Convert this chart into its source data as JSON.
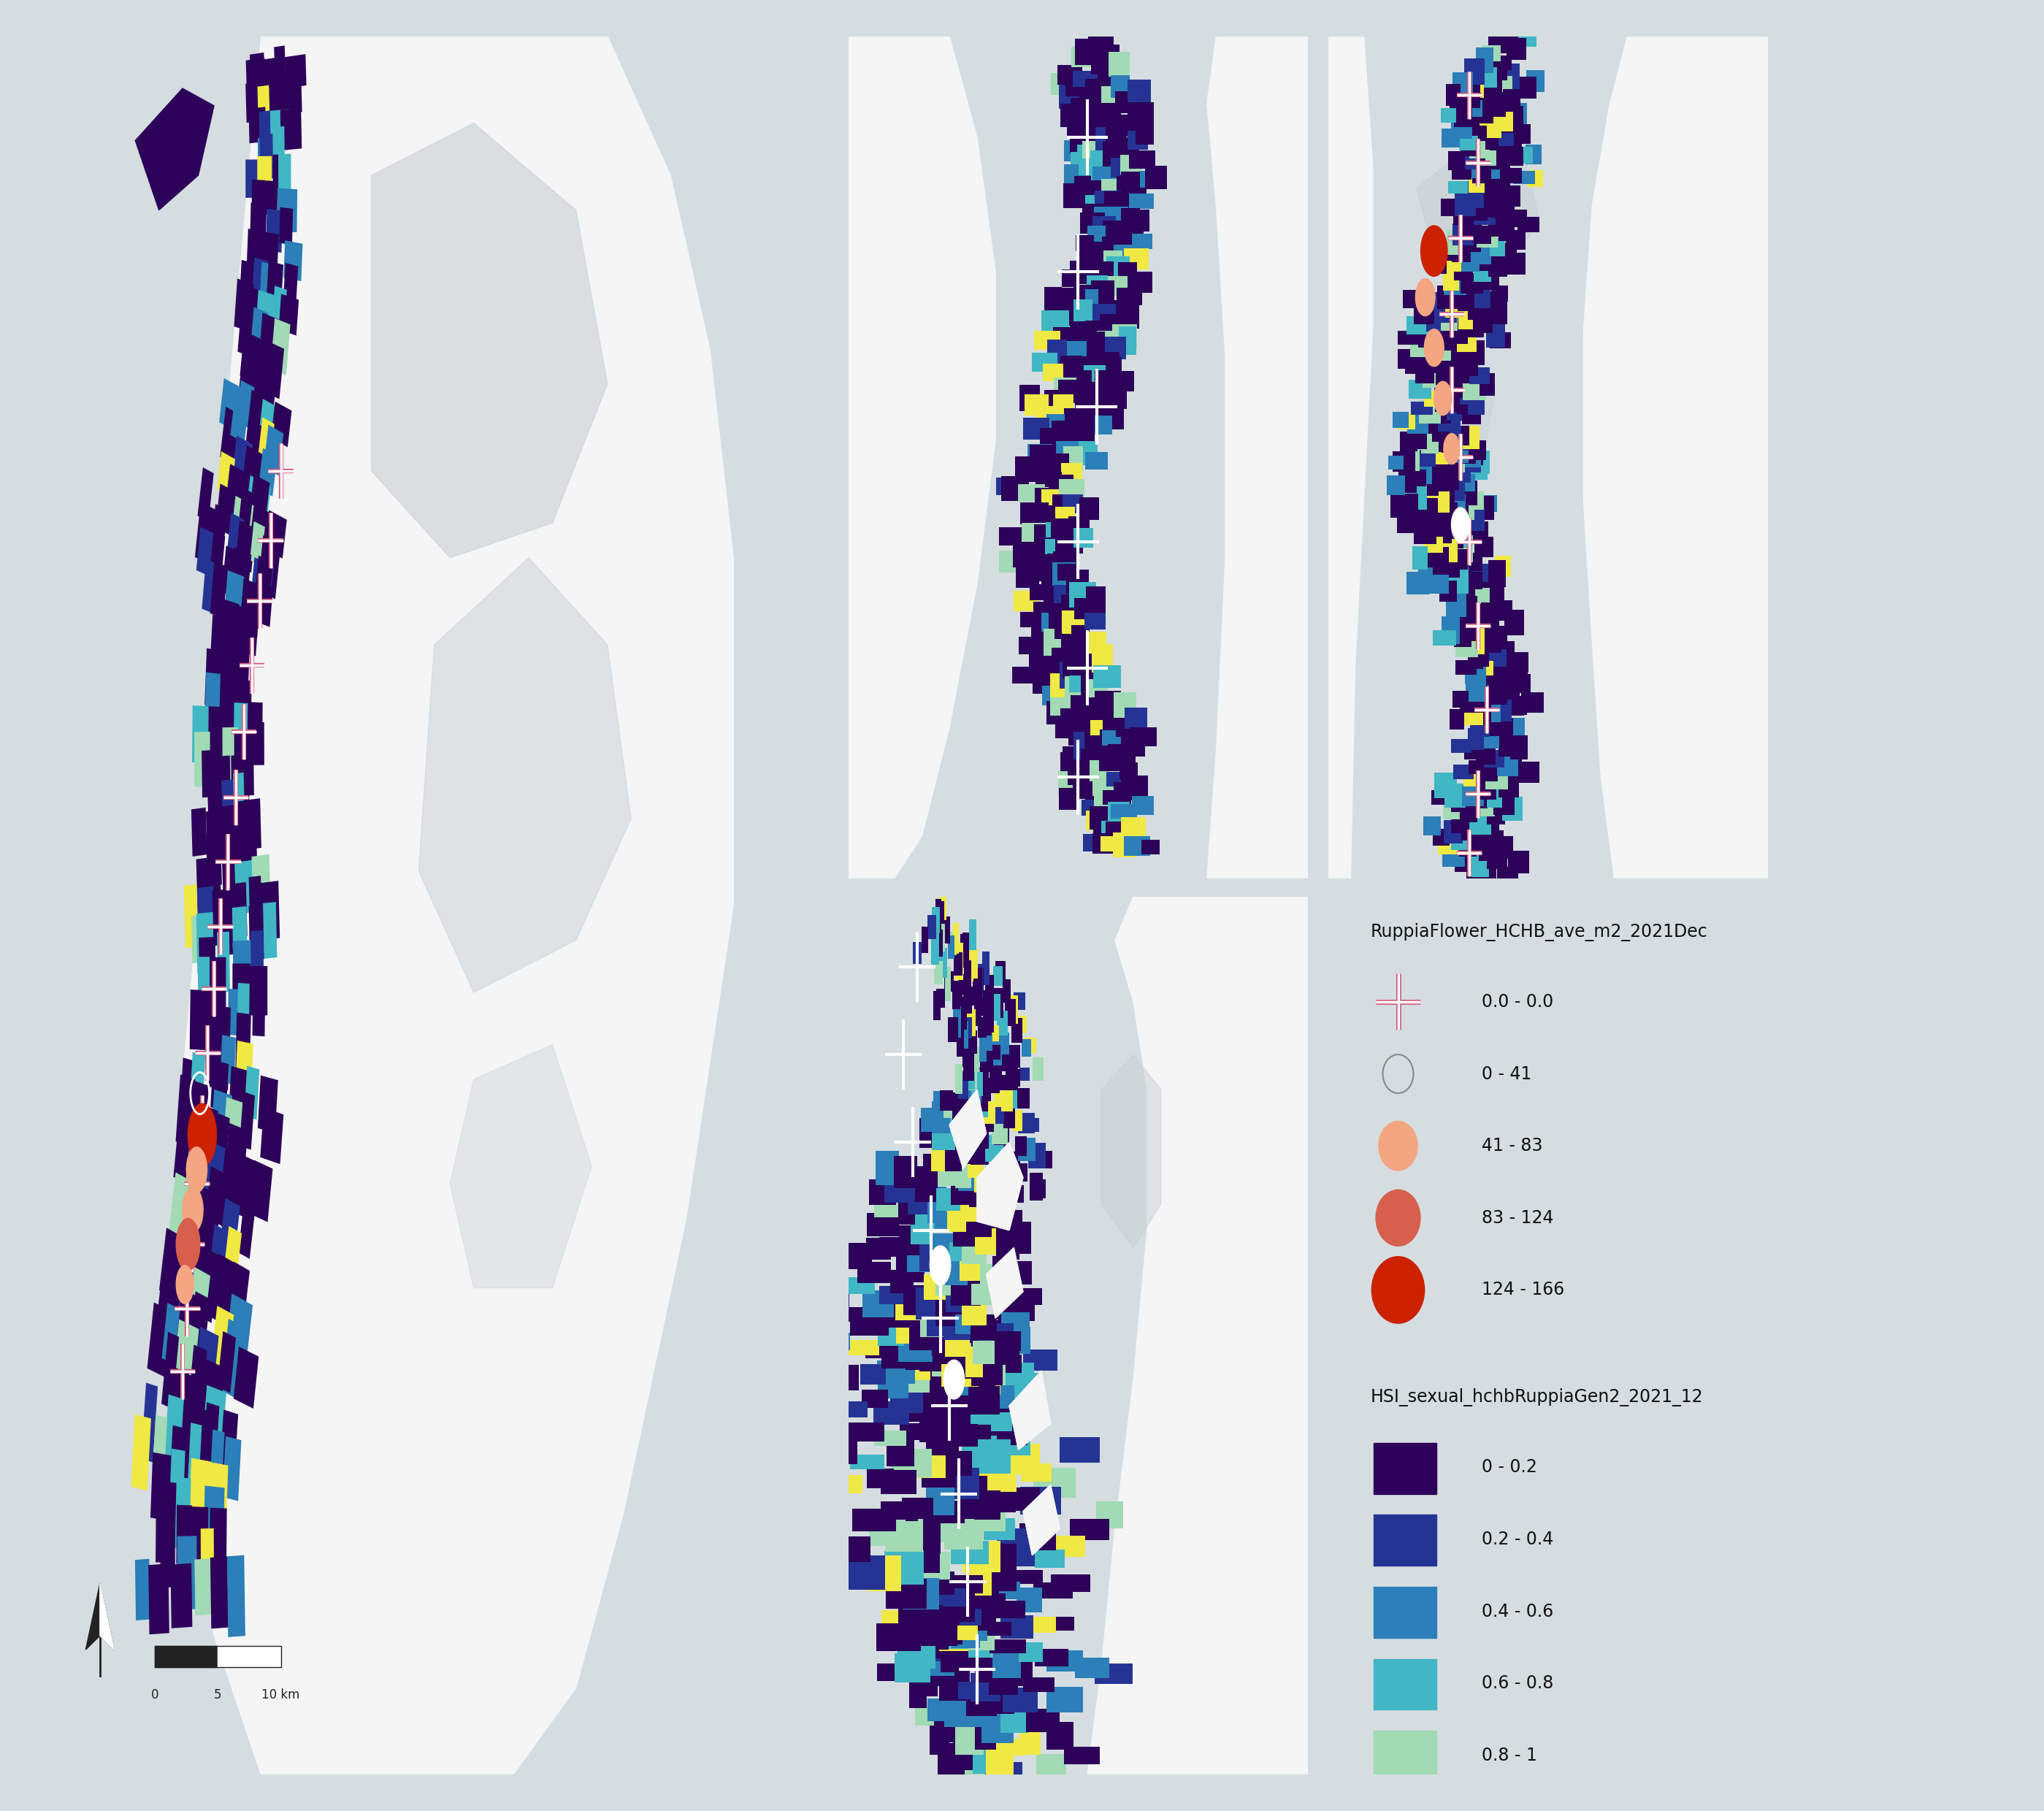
{
  "fig_width": 27.99,
  "fig_height": 24.8,
  "background_color": "#d5dde0",
  "land_white": "#f5f5f5",
  "land_gray_light": "#dde4e6",
  "water_gray": "#c8d0d4",
  "map_land_detail": "#e8eaec",
  "hsi_colors": [
    "#2d0059",
    "#253494",
    "#2c7fb8",
    "#41b6c4",
    "#a1dab4",
    "#f0e843"
  ],
  "hsi_labels": [
    "0 - 0.2",
    "0.2 - 0.4",
    "0.4 - 0.6",
    "0.6 - 0.8",
    "0.8 - 1"
  ],
  "hsi_patch_colors": [
    "#2d0059",
    "#253494",
    "#2c7fb8",
    "#41b6c4",
    "#a1dab4"
  ],
  "hsi_yellow": "#f0e843",
  "flower_labels": [
    "0.0 - 0.0",
    "0 - 41",
    "41 - 83",
    "83 - 124",
    "124 - 166"
  ],
  "flower_sizes": [
    0,
    6,
    9,
    12,
    16
  ],
  "cross_outline_color": "#d06080",
  "cross_fill_color": "#ffffff",
  "circle_edge_color": "#ffffff",
  "circle_colors": [
    "none",
    "#ffffff",
    "#f4a582",
    "#d6604d",
    "#cc2200"
  ],
  "legend_title1": "RuppiaFlower_HCHB_ave_m2_2021Dec",
  "legend_title2": "HSI_sexual_hchbRuppiaGen2_2021_12",
  "north_arrow_color": "#222222",
  "scale_bar_color": "#222222"
}
